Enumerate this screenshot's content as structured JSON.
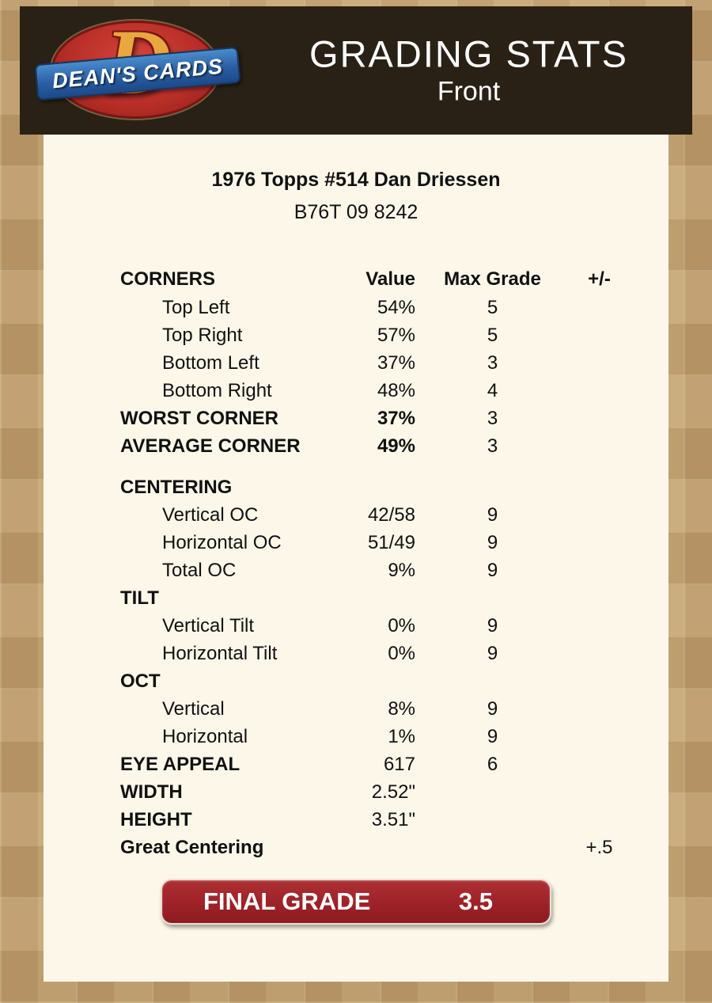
{
  "colors": {
    "page_bg": "#c2a170",
    "header_bg": "#2a2116",
    "panel_bg": "#fdf7ea",
    "final_grade_red": "#9c2127",
    "logo_red": "#b92f28",
    "logo_blue": "#2a5ea2",
    "logo_gold": "#e9a83f"
  },
  "header": {
    "title": "GRADING STATS",
    "subtitle": "Front",
    "logo_text": "DEAN'S CARDS",
    "logo_letter": "D"
  },
  "card": {
    "title": "1976 Topps #514 Dan Driessen",
    "code": "B76T 09 8242"
  },
  "table": {
    "columns": {
      "label": "CORNERS",
      "value": "Value",
      "max": "Max Grade",
      "pm": "+/-"
    },
    "rows": [
      {
        "label": "Top Left",
        "value": "54%",
        "max": "5",
        "pm": "",
        "type": "sub"
      },
      {
        "label": "Top Right",
        "value": "57%",
        "max": "5",
        "pm": "",
        "type": "sub"
      },
      {
        "label": "Bottom Left",
        "value": "37%",
        "max": "3",
        "pm": "",
        "type": "sub"
      },
      {
        "label": "Bottom Right",
        "value": "48%",
        "max": "4",
        "pm": "",
        "type": "sub"
      },
      {
        "label": "WORST CORNER",
        "value": "37%",
        "max": "3",
        "pm": "",
        "type": "bold"
      },
      {
        "label": "AVERAGE CORNER",
        "value": "49%",
        "max": "3",
        "pm": "",
        "type": "bold"
      },
      {
        "label": "CENTERING",
        "value": "",
        "max": "",
        "pm": "",
        "type": "section",
        "gap": true
      },
      {
        "label": "Vertical OC",
        "value": "42/58",
        "max": "9",
        "pm": "",
        "type": "sub"
      },
      {
        "label": "Horizontal OC",
        "value": "51/49",
        "max": "9",
        "pm": "",
        "type": "sub"
      },
      {
        "label": "Total OC",
        "value": "9%",
        "max": "9",
        "pm": "",
        "type": "sub"
      },
      {
        "label": "TILT",
        "value": "",
        "max": "",
        "pm": "",
        "type": "section"
      },
      {
        "label": "Vertical Tilt",
        "value": "0%",
        "max": "9",
        "pm": "",
        "type": "sub"
      },
      {
        "label": "Horizontal Tilt",
        "value": "0%",
        "max": "9",
        "pm": "",
        "type": "sub"
      },
      {
        "label": "OCT",
        "value": "",
        "max": "",
        "pm": "",
        "type": "section"
      },
      {
        "label": "Vertical",
        "value": "8%",
        "max": "9",
        "pm": "",
        "type": "sub"
      },
      {
        "label": "Horizontal",
        "value": "1%",
        "max": "9",
        "pm": "",
        "type": "sub"
      },
      {
        "label": "EYE APPEAL",
        "value": "617",
        "max": "6",
        "pm": "",
        "type": "boldlabel"
      },
      {
        "label": "WIDTH",
        "value": "2.52\"",
        "max": "",
        "pm": "",
        "type": "boldlabel"
      },
      {
        "label": "HEIGHT",
        "value": "3.51\"",
        "max": "",
        "pm": "",
        "type": "boldlabel"
      },
      {
        "label": "Great Centering",
        "value": "",
        "max": "",
        "pm": "+.5",
        "type": "boldlabel"
      }
    ]
  },
  "final_grade": {
    "label": "FINAL GRADE",
    "value": "3.5"
  }
}
